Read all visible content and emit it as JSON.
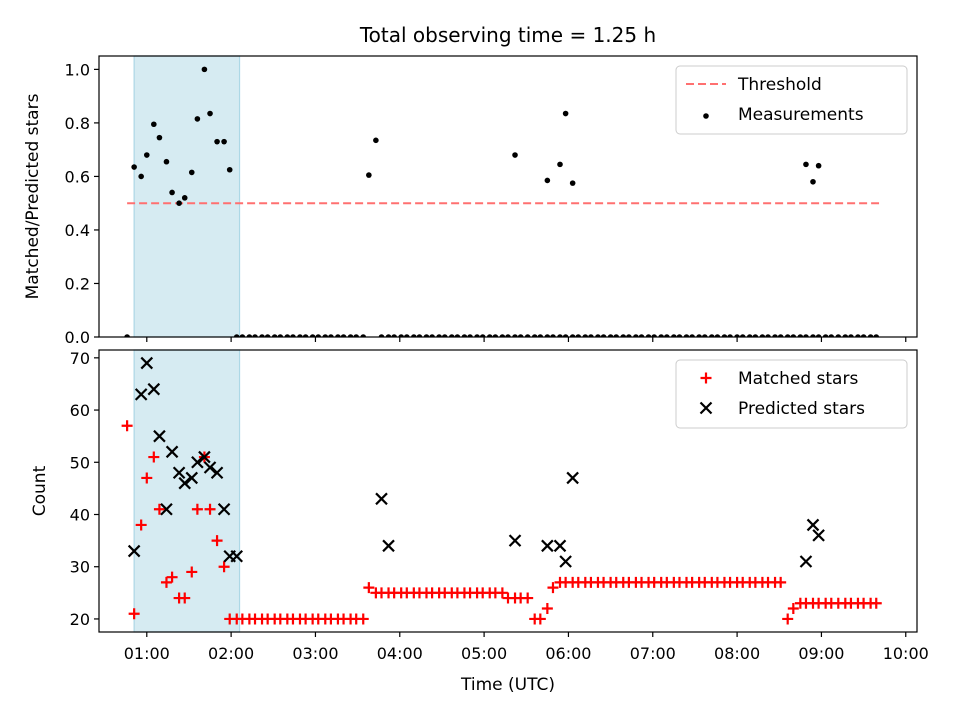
{
  "title": "Total observing time = 1.25 h",
  "colors": {
    "threshold": "#ff7070",
    "measurement": "#000000",
    "matched": "#ff0000",
    "predicted": "#000000",
    "span": "#add8e6"
  },
  "chart_data": [
    {
      "type": "scatter",
      "ylabel": "Matched/Predicted stars",
      "xlabel": "",
      "xlim": [
        "00:26",
        "10:08"
      ],
      "ylim": [
        0,
        1.05
      ],
      "yticks": [
        0.0,
        0.2,
        0.4,
        0.6,
        0.8,
        1.0
      ],
      "shaded_span": [
        "00:51",
        "02:06"
      ],
      "legend": {
        "placement": "top-right",
        "entries": [
          "Threshold",
          "Measurements"
        ]
      },
      "series": [
        {
          "name": "Threshold",
          "kind": "dashed-line",
          "x": [
            "00:46",
            "09:41"
          ],
          "y": [
            0.5,
            0.5
          ]
        },
        {
          "name": "Measurements",
          "kind": "points",
          "x": [
            "00:46",
            "00:51",
            "00:56",
            "01:00",
            "01:05",
            "01:09",
            "01:14",
            "01:18",
            "01:23",
            "01:27",
            "01:32",
            "01:36",
            "01:41",
            "01:45",
            "01:50",
            "01:55",
            "01:59",
            "02:04",
            "02:08",
            "02:13",
            "02:17",
            "02:22",
            "02:26",
            "02:31",
            "02:35",
            "02:40",
            "02:44",
            "02:49",
            "02:53",
            "02:58",
            "03:02",
            "03:07",
            "03:11",
            "03:16",
            "03:20",
            "03:25",
            "03:29",
            "03:34",
            "03:38",
            "03:43",
            "03:47",
            "03:52",
            "03:56",
            "04:01",
            "04:05",
            "04:10",
            "04:14",
            "04:19",
            "04:23",
            "04:28",
            "04:32",
            "04:37",
            "04:41",
            "04:46",
            "04:50",
            "04:55",
            "04:59",
            "05:04",
            "05:08",
            "05:13",
            "05:17",
            "05:22",
            "05:26",
            "05:31",
            "05:36",
            "05:40",
            "05:45",
            "05:49",
            "05:54",
            "05:58",
            "06:03",
            "06:07",
            "06:12",
            "06:16",
            "06:21",
            "06:25",
            "06:30",
            "06:34",
            "06:39",
            "06:43",
            "06:48",
            "06:52",
            "06:57",
            "07:01",
            "07:06",
            "07:10",
            "07:15",
            "07:19",
            "07:24",
            "07:28",
            "07:33",
            "07:37",
            "07:42",
            "07:46",
            "07:51",
            "07:55",
            "08:00",
            "08:04",
            "08:09",
            "08:13",
            "08:18",
            "08:22",
            "08:27",
            "08:31",
            "08:36",
            "08:40",
            "08:45",
            "08:49",
            "08:54",
            "08:58",
            "09:03",
            "09:07",
            "09:12",
            "09:17",
            "09:21",
            "09:26",
            "09:30",
            "09:35",
            "09:39"
          ],
          "y": [
            0.0,
            0.635,
            0.6,
            0.68,
            0.795,
            0.745,
            0.655,
            0.54,
            0.5,
            0.52,
            0.615,
            0.815,
            1.0,
            0.835,
            0.73,
            0.73,
            0.625,
            0.0,
            0.0,
            0.0,
            0.0,
            0.0,
            0.0,
            0.0,
            0.0,
            0.0,
            0.0,
            0.0,
            0.0,
            0.0,
            0.0,
            0.0,
            0.0,
            0.0,
            0.0,
            0.0,
            0.0,
            0.0,
            0.605,
            0.735,
            0.0,
            0.0,
            0.0,
            0.0,
            0.0,
            0.0,
            0.0,
            0.0,
            0.0,
            0.0,
            0.0,
            0.0,
            0.0,
            0.0,
            0.0,
            0.0,
            0.0,
            0.0,
            0.0,
            0.0,
            0.0,
            0.0,
            0.0,
            0.0,
            0.0,
            0.0,
            0.0,
            0.0,
            0.0,
            0.0,
            0.0,
            0.0,
            0.0,
            0.0,
            0.0,
            0.0,
            0.0,
            0.0,
            0.0,
            0.0,
            0.0,
            0.0,
            0.0,
            0.0,
            0.0,
            0.0,
            0.0,
            0.0,
            0.0,
            0.0,
            0.0,
            0.0,
            0.0,
            0.0,
            0.0,
            0.0,
            0.0,
            0.0,
            0.0,
            0.0,
            0.0,
            0.0,
            0.0,
            0.0,
            0.0,
            0.0,
            0.0,
            0.0,
            0.0,
            0.0,
            0.0,
            0.0,
            0.0,
            0.0,
            0.0,
            0.0,
            0.0,
            0.0,
            0.0
          ],
          "extra_points": [
            {
              "x": "05:22",
              "y": 0.68
            },
            {
              "x": "05:45",
              "y": 0.585
            },
            {
              "x": "05:54",
              "y": 0.645
            },
            {
              "x": "05:58",
              "y": 0.835
            },
            {
              "x": "06:03",
              "y": 0.575
            },
            {
              "x": "08:49",
              "y": 0.645
            },
            {
              "x": "08:54",
              "y": 0.58
            },
            {
              "x": "08:58",
              "y": 0.64
            }
          ]
        }
      ]
    },
    {
      "type": "scatter",
      "ylabel": "Count",
      "xlabel": "Time (UTC)",
      "xlim": [
        "00:26",
        "10:08"
      ],
      "ylim": [
        17.5,
        71.5
      ],
      "yticks": [
        20,
        30,
        40,
        50,
        60,
        70
      ],
      "xticks": [
        "01:00",
        "02:00",
        "03:00",
        "04:00",
        "05:00",
        "06:00",
        "07:00",
        "08:00",
        "09:00",
        "10:00"
      ],
      "shaded_span": [
        "00:51",
        "02:06"
      ],
      "legend": {
        "placement": "top-right",
        "entries": [
          "Matched stars",
          "Predicted stars"
        ]
      },
      "series": [
        {
          "name": "Matched stars",
          "marker": "+",
          "x": [
            "00:46",
            "00:51",
            "00:56",
            "01:00",
            "01:05",
            "01:09",
            "01:14",
            "01:18",
            "01:23",
            "01:27",
            "01:32",
            "01:36",
            "01:41",
            "01:45",
            "01:50",
            "01:55",
            "01:59",
            "02:04",
            "02:08",
            "02:13",
            "02:17",
            "02:22",
            "02:26",
            "02:31",
            "02:35",
            "02:40",
            "02:44",
            "02:49",
            "02:53",
            "02:58",
            "03:02",
            "03:07",
            "03:11",
            "03:16",
            "03:20",
            "03:25",
            "03:29",
            "03:34",
            "03:38",
            "03:43",
            "03:47",
            "03:52",
            "03:56",
            "04:01",
            "04:05",
            "04:10",
            "04:14",
            "04:19",
            "04:23",
            "04:28",
            "04:32",
            "04:37",
            "04:41",
            "04:46",
            "04:50",
            "04:55",
            "04:59",
            "05:04",
            "05:08",
            "05:13",
            "05:17",
            "05:22",
            "05:26",
            "05:31",
            "05:36",
            "05:40",
            "05:45",
            "05:49",
            "05:54",
            "05:58",
            "06:03",
            "06:07",
            "06:12",
            "06:16",
            "06:21",
            "06:25",
            "06:30",
            "06:34",
            "06:39",
            "06:43",
            "06:48",
            "06:52",
            "06:57",
            "07:01",
            "07:06",
            "07:10",
            "07:15",
            "07:19",
            "07:24",
            "07:28",
            "07:33",
            "07:37",
            "07:42",
            "07:46",
            "07:51",
            "07:55",
            "08:00",
            "08:04",
            "08:09",
            "08:13",
            "08:18",
            "08:22",
            "08:27",
            "08:31",
            "08:36",
            "08:40",
            "08:45",
            "08:49",
            "08:54",
            "08:58",
            "09:03",
            "09:07",
            "09:12",
            "09:17",
            "09:21",
            "09:26",
            "09:30",
            "09:35",
            "09:39"
          ],
          "y": [
            57,
            21,
            38,
            47,
            51,
            41,
            27,
            28,
            24,
            24,
            29,
            41,
            51,
            41,
            35,
            30,
            20,
            20,
            20,
            20,
            20,
            20,
            20,
            20,
            20,
            20,
            20,
            20,
            20,
            20,
            20,
            20,
            20,
            20,
            20,
            20,
            20,
            20,
            26,
            25,
            25,
            25,
            25,
            25,
            25,
            25,
            25,
            25,
            25,
            25,
            25,
            25,
            25,
            25,
            25,
            25,
            25,
            25,
            25,
            25,
            24,
            24,
            24,
            24,
            20,
            20,
            22,
            26,
            27,
            27,
            27,
            27,
            27,
            27,
            27,
            27,
            27,
            27,
            27,
            27,
            27,
            27,
            27,
            27,
            27,
            27,
            27,
            27,
            27,
            27,
            27,
            27,
            27,
            27,
            27,
            27,
            27,
            27,
            27,
            27,
            27,
            27,
            27,
            27,
            20,
            22,
            23,
            23,
            23,
            23,
            23,
            23,
            23,
            23,
            23,
            23,
            23,
            23,
            23
          ]
        },
        {
          "name": "Predicted stars",
          "marker": "x",
          "x": [
            "00:51",
            "00:56",
            "01:00",
            "01:05",
            "01:09",
            "01:14",
            "01:18",
            "01:23",
            "01:27",
            "01:32",
            "01:36",
            "01:41",
            "01:45",
            "01:50",
            "01:55",
            "01:59",
            "02:04",
            "03:47",
            "03:52",
            "05:22",
            "05:45",
            "05:54",
            "05:58",
            "06:03",
            "08:49",
            "08:54",
            "08:58"
          ],
          "y": [
            33,
            63,
            69,
            64,
            55,
            41,
            52,
            48,
            46,
            47,
            50,
            51,
            49,
            48,
            41,
            32,
            32,
            43,
            34,
            35,
            34,
            34,
            31,
            47,
            31,
            38,
            36
          ]
        }
      ]
    }
  ]
}
